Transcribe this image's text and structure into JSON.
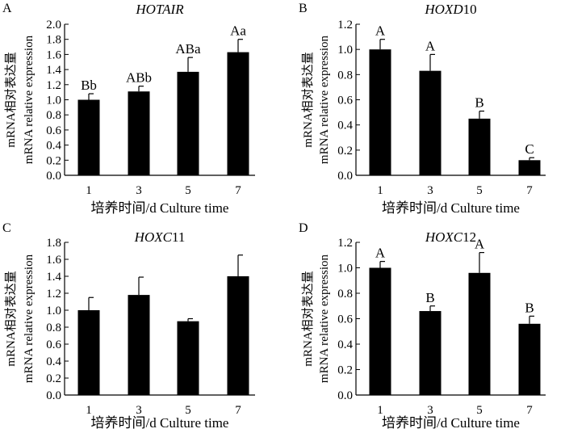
{
  "chart_data": [
    {
      "type": "bar",
      "panel": "A",
      "title_italic": "HOTAIR",
      "title_upright": "",
      "categories": [
        "1",
        "3",
        "5",
        "7"
      ],
      "values": [
        1.0,
        1.11,
        1.37,
        1.63
      ],
      "errors": [
        0.08,
        0.07,
        0.19,
        0.17
      ],
      "group_labels": [
        "Bb",
        "ABb",
        "ABa",
        "Aa"
      ],
      "ylim": [
        0,
        2.0
      ],
      "yticks": [
        "0.0",
        "0.2",
        "0.4",
        "0.6",
        "0.8",
        "1.0",
        "1.2",
        "1.4",
        "1.6",
        "1.8",
        "2.0"
      ],
      "ylabel_cn": "mRNA相对表达量",
      "ylabel_en": "mRNA relative expression",
      "xlabel": "培养时间/d  Culture time"
    },
    {
      "type": "bar",
      "panel": "B",
      "title_italic": "HOXD",
      "title_upright": "10",
      "categories": [
        "1",
        "3",
        "5",
        "7"
      ],
      "values": [
        1.0,
        0.83,
        0.45,
        0.12
      ],
      "errors": [
        0.08,
        0.13,
        0.06,
        0.02
      ],
      "group_labels": [
        "A",
        "A",
        "B",
        "C"
      ],
      "ylim": [
        0,
        1.2
      ],
      "yticks": [
        "0.0",
        "0.2",
        "0.4",
        "0.6",
        "0.8",
        "1.0",
        "1.2"
      ],
      "ylabel_cn": "mRNA相对表达量",
      "ylabel_en": "mRNA relative expression",
      "xlabel": "培养时间/d  Culture time"
    },
    {
      "type": "bar",
      "panel": "C",
      "title_italic": "HOXC",
      "title_upright": "11",
      "categories": [
        "1",
        "3",
        "5",
        "7"
      ],
      "values": [
        1.0,
        1.18,
        0.87,
        1.4
      ],
      "errors": [
        0.15,
        0.21,
        0.03,
        0.25
      ],
      "group_labels": [
        "",
        "",
        "",
        ""
      ],
      "ylim": [
        0,
        1.8
      ],
      "yticks": [
        "0.0",
        "0.2",
        "0.4",
        "0.6",
        "0.8",
        "1.0",
        "1.2",
        "1.4",
        "1.6",
        "1.8"
      ],
      "ylabel_cn": "mRNA相对表达量",
      "ylabel_en": "mRNA relative expression",
      "xlabel": "培养时间/d  Culture time"
    },
    {
      "type": "bar",
      "panel": "D",
      "title_italic": "HOXC",
      "title_upright": "12",
      "categories": [
        "1",
        "3",
        "5",
        "7"
      ],
      "values": [
        1.0,
        0.66,
        0.96,
        0.56
      ],
      "errors": [
        0.05,
        0.04,
        0.16,
        0.06
      ],
      "group_labels": [
        "A",
        "B",
        "A",
        "B"
      ],
      "ylim": [
        0,
        1.2
      ],
      "yticks": [
        "0.0",
        "0.2",
        "0.4",
        "0.6",
        "0.8",
        "1.0",
        "1.2"
      ],
      "ylabel_cn": "mRNA相对表达量",
      "ylabel_en": "mRNA relative expression",
      "xlabel": "培养时间/d  Culture time"
    }
  ]
}
